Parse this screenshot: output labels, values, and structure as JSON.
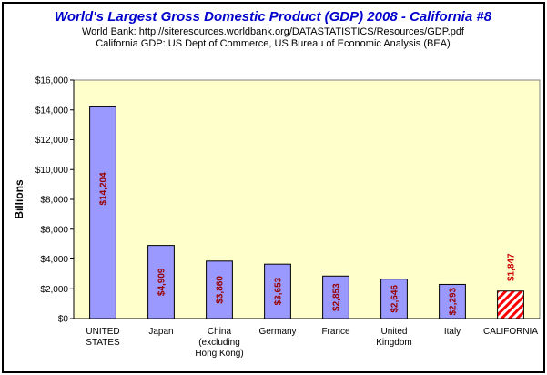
{
  "chart_data": {
    "type": "bar",
    "title": "World's Largest Gross Domestic Product (GDP) 2008 - California #8",
    "subtitles": [
      "World Bank: http://siteresources.worldbank.org/DATASTATISTICS/Resources/GDP.pdf",
      "California GDP: US Dept of Commerce, US Bureau of Economic Analysis (BEA)"
    ],
    "ylabel": "Billions",
    "xlabel": "",
    "ylim": [
      0,
      16000
    ],
    "yticks": [
      0,
      2000,
      4000,
      6000,
      8000,
      10000,
      12000,
      14000,
      16000
    ],
    "ytick_labels": [
      "$0",
      "$2,000",
      "$4,000",
      "$6,000",
      "$8,000",
      "$10,000",
      "$12,000",
      "$14,000",
      "$16,000"
    ],
    "grid": false,
    "categories": [
      [
        "UNITED",
        "STATES"
      ],
      [
        "Japan"
      ],
      [
        "China",
        "(excluding",
        "Hong Kong)"
      ],
      [
        "Germany"
      ],
      [
        "France"
      ],
      [
        "United",
        "Kingdom"
      ],
      [
        "Italy"
      ],
      [
        "CALIFORNIA"
      ]
    ],
    "values": [
      14204,
      4909,
      3860,
      3653,
      2853,
      2646,
      2293,
      1847
    ],
    "value_labels": [
      "$14,204",
      "$4,909",
      "$3,860",
      "$3,653",
      "$2,853",
      "$2,646",
      "$2,293",
      "$1,847"
    ],
    "highlight_index": 7,
    "colors": {
      "title": "#0000cc",
      "plot_background": "#ffffcc",
      "bar_fill": "#9999ff",
      "bar_stroke": "#000000",
      "value_label": "#990000",
      "highlight_stripe": "#ff0000",
      "highlight_label": "#cc0000"
    }
  }
}
